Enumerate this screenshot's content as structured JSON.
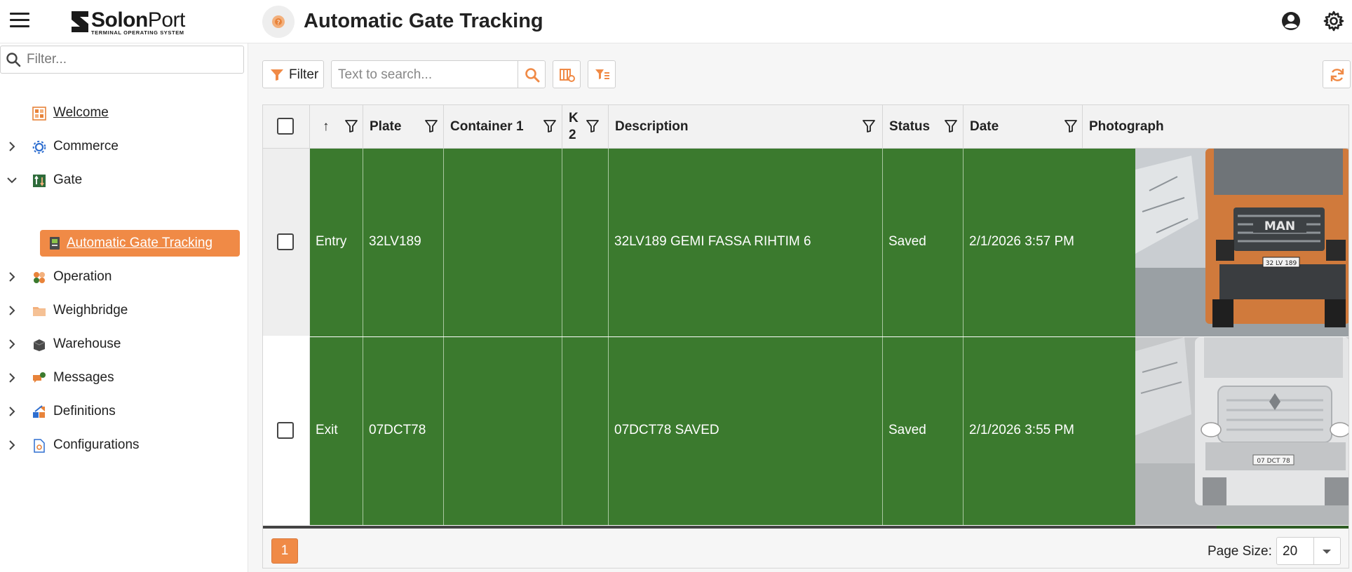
{
  "header": {
    "logo_bold": "Solon",
    "logo_light": "Port",
    "logo_tagline": "TERMINAL OPERATING SYSTEM",
    "page_title": "Automatic Gate Tracking",
    "icons": {
      "menu": "hamburger-icon",
      "page": "gate-icon",
      "account": "account-icon",
      "settings": "gear-icon"
    }
  },
  "sidebar": {
    "filter_placeholder": "Filter...",
    "items": [
      {
        "label": "Welcome",
        "icon": "dashboard-icon",
        "expandable": false
      },
      {
        "label": "Commerce",
        "icon": "commerce-icon",
        "expandable": true,
        "expanded": false
      },
      {
        "label": "Gate",
        "icon": "gate-icon",
        "expandable": true,
        "expanded": true
      },
      {
        "label": "Automatic Gate Tracking",
        "icon": "document-icon",
        "active": true
      },
      {
        "label": "Operation",
        "icon": "operation-icon",
        "expandable": true,
        "expanded": false
      },
      {
        "label": "Weighbridge",
        "icon": "folder-icon",
        "expandable": true,
        "expanded": false
      },
      {
        "label": "Warehouse",
        "icon": "box-icon",
        "expandable": true,
        "expanded": false
      },
      {
        "label": "Messages",
        "icon": "chat-icon",
        "expandable": true,
        "expanded": false
      },
      {
        "label": "Definitions",
        "icon": "definitions-icon",
        "expandable": true,
        "expanded": false
      },
      {
        "label": "Configurations",
        "icon": "config-icon",
        "expandable": true,
        "expanded": false
      }
    ]
  },
  "toolbar": {
    "filter_label": "Filter",
    "search_placeholder": "Text to search...",
    "accent_color": "#f08a46"
  },
  "grid": {
    "columns": [
      {
        "key": "direction",
        "label": "↑"
      },
      {
        "key": "plate",
        "label": "Plate"
      },
      {
        "key": "container1",
        "label": "Container 1"
      },
      {
        "key": "k2",
        "label_line1": "K",
        "label_line2": "2"
      },
      {
        "key": "description",
        "label": "Description"
      },
      {
        "key": "status",
        "label": "Status"
      },
      {
        "key": "date",
        "label": "Date"
      },
      {
        "key": "photo",
        "label": "Photograph"
      }
    ],
    "rows": [
      {
        "direction": "Entry",
        "plate": "32LV189",
        "container1": "",
        "k2": "",
        "description": "32LV189 GEMI FASSA RIHTIM 6",
        "status": "Saved",
        "date": "2/1/2026 3:57 PM",
        "photo_text": "32 LV 189",
        "truck_brand": "MAN"
      },
      {
        "direction": "Exit",
        "plate": "07DCT78",
        "container1": "",
        "k2": "",
        "description": "07DCT78 SAVED",
        "status": "Saved",
        "date": "2/1/2026 3:55 PM",
        "photo_text": "07 DCT 78"
      }
    ],
    "row_color": "#3b7a2e"
  },
  "pagination": {
    "current_page": "1",
    "page_size_label": "Page Size:",
    "page_size": "20"
  }
}
